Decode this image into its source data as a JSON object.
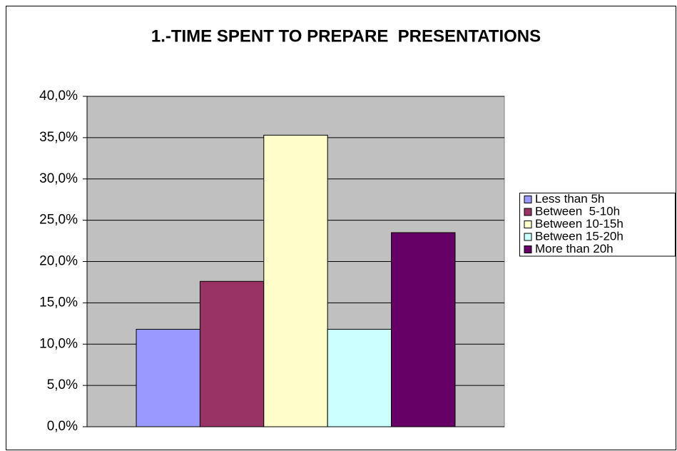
{
  "chart_data": {
    "type": "bar",
    "title": "1.-TIME SPENT TO PREPARE  PRESENTATIONS",
    "series": [
      {
        "name": "Less than 5h",
        "color": "#9999ff",
        "values": [
          11.8
        ]
      },
      {
        "name": "Between  5-10h",
        "color": "#993366",
        "values": [
          17.6
        ]
      },
      {
        "name": "Between 10-15h",
        "color": "#ffffcc",
        "values": [
          35.3
        ]
      },
      {
        "name": "Between 15-20h",
        "color": "#ccffff",
        "values": [
          11.8
        ]
      },
      {
        "name": "More than 20h",
        "color": "#660066",
        "values": [
          23.5
        ]
      }
    ],
    "ylim": [
      0,
      40
    ],
    "yticks": [
      {
        "value": 0,
        "label": "0,0%"
      },
      {
        "value": 5,
        "label": "5,0%"
      },
      {
        "value": 10,
        "label": "10,0%"
      },
      {
        "value": 15,
        "label": "15,0%"
      },
      {
        "value": 20,
        "label": "20,0%"
      },
      {
        "value": 25,
        "label": "25,0%"
      },
      {
        "value": 30,
        "label": "30,0%"
      },
      {
        "value": 35,
        "label": "35,0%"
      },
      {
        "value": 40,
        "label": "40,0%"
      }
    ],
    "grid": true,
    "legend": "right",
    "plot_background": "#c0c0c0"
  }
}
